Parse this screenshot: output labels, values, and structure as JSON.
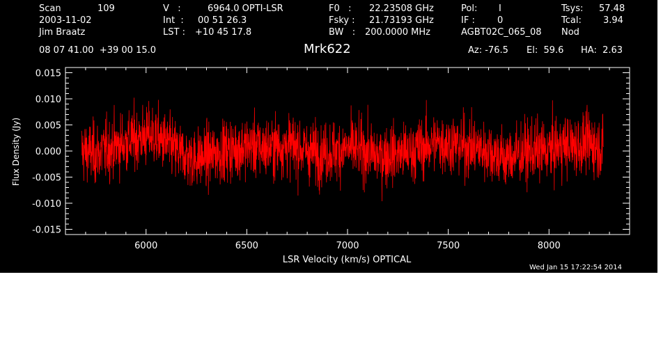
{
  "header": {
    "scan_label": "Scan",
    "scan_value": "109",
    "date": "2003-11-02",
    "observer": "Jim Braatz",
    "v_label": "V   :",
    "v_value": "6964.0 OPTI-LSR",
    "int_label": "Int  :",
    "int_value": "00 51 26.3",
    "lst_label": "LST :",
    "lst_value": "+10 45 17.8",
    "f0_label": "F0   :",
    "f0_value": "22.23508 GHz",
    "fsky_label": "Fsky :",
    "fsky_value": "21.73193 GHz",
    "bw_label": "BW   :",
    "bw_value": "200.0000 MHz",
    "pol_label": "Pol:",
    "pol_value": "I",
    "if_label": "IF :",
    "if_value": "0",
    "project": "AGBT02C_065_08",
    "tsys_label": "Tsys:",
    "tsys_value": "57.48",
    "tcal_label": "Tcal:",
    "tcal_value": "3.94",
    "mode": "Nod",
    "coords": "08 07 41.00  +39 00 15.0",
    "az": "Az: -76.5",
    "el": "El:  59.6",
    "ha": "HA:  2.63"
  },
  "footer": {
    "timestamp": "Wed Jan 15 17:22:54 2014"
  },
  "colors": {
    "background": "#000000",
    "foreground": "#ffffff",
    "trace": "#ff0000"
  },
  "chart_data": {
    "type": "line",
    "title": "Mrk622",
    "xlabel": "LSR Velocity (km/s) OPTICAL",
    "ylabel": "Flux Density (Jy)",
    "xlim": [
      5600,
      8400
    ],
    "ylim": [
      -0.016,
      0.016
    ],
    "xticks": [
      6000,
      6500,
      7000,
      7500,
      8000
    ],
    "xtick_labels": [
      "6000",
      "6500",
      "7000",
      "7500",
      "8000"
    ],
    "yticks": [
      -0.015,
      -0.01,
      -0.005,
      0.0,
      0.005,
      0.01,
      0.015
    ],
    "ytick_labels": [
      "-0.015",
      "-0.010",
      "-0.005",
      "0.000",
      "0.005",
      "0.010",
      "0.015"
    ],
    "series": [
      {
        "color": "#ff0000",
        "x": [
          5680,
          5750,
          5820,
          5890,
          5960,
          6030,
          6100,
          6170,
          6240,
          6310,
          6380,
          6450,
          6520,
          6590,
          6660,
          6730,
          6800,
          6870,
          6940,
          7010,
          7080,
          7150,
          7220,
          7290,
          7360,
          7430,
          7500,
          7570,
          7640,
          7710,
          7780,
          7850,
          7920,
          7990,
          8060,
          8130,
          8200,
          8270
        ],
        "y": [
          0.0,
          -0.0005,
          0.0005,
          0.0015,
          0.0025,
          0.003,
          0.0015,
          -0.0005,
          -0.0015,
          -0.001,
          0.0,
          0.0005,
          0.001,
          0.0005,
          0.001,
          0.001,
          0.0,
          -0.0005,
          0.0,
          0.0005,
          0.0,
          -0.001,
          -0.0005,
          -0.0005,
          0.0005,
          0.0015,
          0.0015,
          0.001,
          0.0005,
          0.0,
          -0.0015,
          -0.0005,
          0.0,
          0.0,
          0.001,
          0.001,
          0.0015,
          0.0005
        ]
      }
    ]
  }
}
